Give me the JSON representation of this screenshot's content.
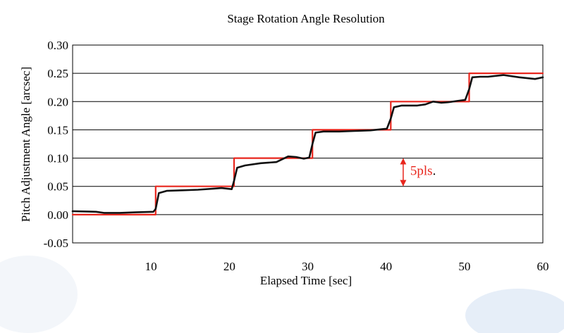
{
  "chart_data": {
    "type": "line",
    "title": "Stage Rotation Angle Resolution",
    "xlabel": "Elapsed Time [sec]",
    "ylabel": "Pitch Adjustment  Angle [arcsec]",
    "xlim": [
      0,
      60
    ],
    "ylim": [
      -0.05,
      0.3
    ],
    "xticks": [
      "10",
      "20",
      "30",
      "40",
      "50",
      "60"
    ],
    "xtick_values": [
      10,
      20,
      30,
      40,
      50,
      60
    ],
    "yticks": [
      "-0.05",
      "0.00",
      "0.05",
      "0.10",
      "0.15",
      "0.20",
      "0.25",
      "0.30"
    ],
    "ytick_values": [
      -0.05,
      0.0,
      0.05,
      0.1,
      0.15,
      0.2,
      0.25,
      0.3
    ],
    "grid": "horizontal",
    "legend": "none",
    "series": [
      {
        "color": "#e8261d",
        "x": [
          0,
          10.6,
          10.6,
          20.6,
          20.6,
          30.6,
          30.6,
          40.6,
          40.6,
          50.6,
          50.6,
          60
        ],
        "y": [
          0.0,
          0.0,
          0.05,
          0.05,
          0.1,
          0.1,
          0.15,
          0.15,
          0.2,
          0.2,
          0.25,
          0.25
        ]
      },
      {
        "color": "#111111",
        "x": [
          0,
          3,
          4,
          6,
          8,
          10.3,
          10.6,
          11.0,
          12,
          14,
          16,
          18,
          19,
          20.3,
          20.6,
          21.0,
          22,
          24,
          26,
          27.5,
          28.5,
          29.5,
          30.2,
          30.6,
          31.0,
          32,
          34,
          36,
          38,
          40.1,
          40.6,
          41.0,
          42,
          44,
          45,
          46,
          47,
          48,
          49,
          50.1,
          50.6,
          51.0,
          52,
          53,
          55,
          57,
          59,
          60
        ],
        "y": [
          0.006,
          0.005,
          0.003,
          0.003,
          0.004,
          0.005,
          0.01,
          0.038,
          0.042,
          0.043,
          0.044,
          0.046,
          0.047,
          0.045,
          0.06,
          0.083,
          0.087,
          0.091,
          0.093,
          0.103,
          0.102,
          0.099,
          0.101,
          0.125,
          0.145,
          0.147,
          0.147,
          0.148,
          0.149,
          0.152,
          0.17,
          0.19,
          0.193,
          0.193,
          0.195,
          0.2,
          0.198,
          0.199,
          0.201,
          0.203,
          0.222,
          0.243,
          0.244,
          0.244,
          0.247,
          0.243,
          0.24,
          0.243
        ]
      }
    ],
    "annotations": [
      {
        "text": "5pls",
        "suffix": ".",
        "color": "#e8261d",
        "x": 42,
        "y1": 0.05,
        "y2": 0.1
      }
    ]
  }
}
